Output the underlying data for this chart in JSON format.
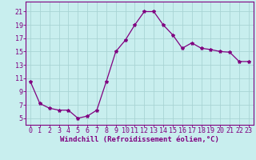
{
  "x": [
    0,
    1,
    2,
    3,
    4,
    5,
    6,
    7,
    8,
    9,
    10,
    11,
    12,
    13,
    14,
    15,
    16,
    17,
    18,
    19,
    20,
    21,
    22,
    23
  ],
  "y": [
    10.5,
    7.2,
    6.5,
    6.2,
    6.2,
    5.0,
    5.3,
    6.2,
    10.5,
    15.0,
    16.7,
    19.0,
    21.0,
    21.0,
    19.0,
    17.5,
    15.5,
    16.3,
    15.5,
    15.3,
    15.0,
    14.9,
    13.5,
    13.5
  ],
  "line_color": "#800080",
  "marker": "*",
  "marker_size": 3,
  "bg_color": "#c8eeee",
  "grid_color": "#a8d4d4",
  "xlabel": "Windchill (Refroidissement éolien,°C)",
  "ylabel_ticks": [
    5,
    7,
    9,
    11,
    13,
    15,
    17,
    19,
    21
  ],
  "xlim": [
    -0.5,
    23.5
  ],
  "ylim": [
    4.0,
    22.5
  ],
  "xticks": [
    0,
    1,
    2,
    3,
    4,
    5,
    6,
    7,
    8,
    9,
    10,
    11,
    12,
    13,
    14,
    15,
    16,
    17,
    18,
    19,
    20,
    21,
    22,
    23
  ],
  "label_fontsize": 6.5,
  "tick_fontsize": 6,
  "spine_color": "#800080",
  "title_color": "#800080"
}
